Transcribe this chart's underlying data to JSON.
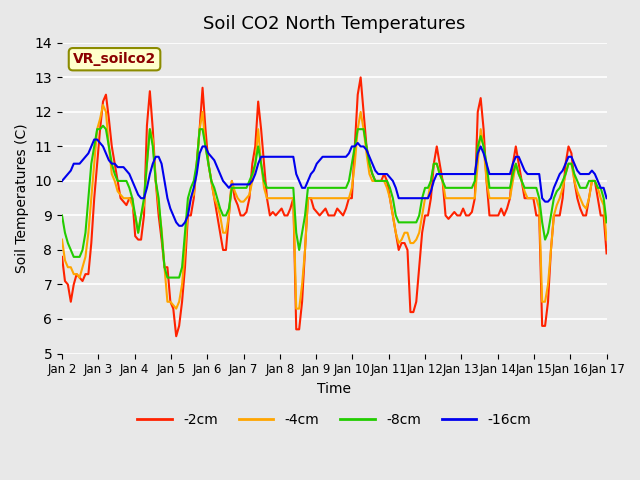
{
  "title": "Soil CO2 North Temperatures",
  "xlabel": "Time",
  "ylabel": "Soil Temperatures (C)",
  "ylim": [
    5.0,
    14.0
  ],
  "yticks": [
    5.0,
    6.0,
    7.0,
    8.0,
    9.0,
    10.0,
    11.0,
    12.0,
    13.0,
    14.0
  ],
  "xtick_labels": [
    "Jan 2",
    "Jan 3",
    "Jan 4",
    "Jan 5",
    "Jan 6",
    "Jan 7",
    "Jan 8",
    "Jan 9",
    "Jan 10",
    "Jan 11",
    "Jan 12",
    "Jan 13",
    "Jan 14",
    "Jan 15",
    "Jan 16",
    "Jan 17"
  ],
  "annotation_text": "VR_soilco2",
  "annotation_color": "#8B0000",
  "annotation_bg": "#FFFFCC",
  "annotation_border": "#8B8B00",
  "colors": {
    "-2cm": "#FF2200",
    "-4cm": "#FFA500",
    "-8cm": "#22CC00",
    "-16cm": "#0000EE"
  },
  "line_width": 1.5,
  "background_color": "#E0E0E0",
  "plot_bg": "#E8E8E8",
  "grid_color": "#FFFFFF",
  "series": {
    "-2cm": [
      7.8,
      7.1,
      7.0,
      6.5,
      7.0,
      7.3,
      7.2,
      7.1,
      7.3,
      7.3,
      8.2,
      9.5,
      10.5,
      11.5,
      12.3,
      12.5,
      11.8,
      11.0,
      10.5,
      10.0,
      9.5,
      9.4,
      9.3,
      9.5,
      9.5,
      8.4,
      8.3,
      8.3,
      9.0,
      11.6,
      12.6,
      11.5,
      10.0,
      9.0,
      8.3,
      7.5,
      7.5,
      6.5,
      6.3,
      5.5,
      5.8,
      6.5,
      7.5,
      9.0,
      9.0,
      9.5,
      10.5,
      11.5,
      12.7,
      11.5,
      10.5,
      10.0,
      9.5,
      9.0,
      8.5,
      8.0,
      8.0,
      9.0,
      10.0,
      9.5,
      9.3,
      9.0,
      9.0,
      9.1,
      9.5,
      10.5,
      11.0,
      12.3,
      11.5,
      10.5,
      9.5,
      9.0,
      9.1,
      9.0,
      9.1,
      9.2,
      9.0,
      9.0,
      9.2,
      9.5,
      5.7,
      5.7,
      6.5,
      8.0,
      9.5,
      9.5,
      9.2,
      9.1,
      9.0,
      9.1,
      9.2,
      9.0,
      9.0,
      9.0,
      9.2,
      9.1,
      9.0,
      9.2,
      9.5,
      9.5,
      11.0,
      12.5,
      13.0,
      12.0,
      11.0,
      10.5,
      10.2,
      10.0,
      10.0,
      10.0,
      10.2,
      10.0,
      9.5,
      9.0,
      8.5,
      8.0,
      8.2,
      8.2,
      8.0,
      6.2,
      6.2,
      6.5,
      7.5,
      8.5,
      9.0,
      9.0,
      9.5,
      10.5,
      11.0,
      10.5,
      10.0,
      9.0,
      8.9,
      9.0,
      9.1,
      9.0,
      9.0,
      9.2,
      9.0,
      9.0,
      9.1,
      9.5,
      12.0,
      12.4,
      11.5,
      10.0,
      9.0,
      9.0,
      9.0,
      9.0,
      9.2,
      9.0,
      9.2,
      9.5,
      10.5,
      11.0,
      10.5,
      10.0,
      9.5,
      9.5,
      9.5,
      9.5,
      9.0,
      9.0,
      5.8,
      5.8,
      6.5,
      8.0,
      9.0,
      9.0,
      9.0,
      9.5,
      10.5,
      11.0,
      10.8,
      10.0,
      9.5,
      9.2,
      9.0,
      9.0,
      9.5,
      10.0,
      10.0,
      9.5,
      9.0,
      9.0,
      7.9
    ],
    "-4cm": [
      8.3,
      7.7,
      7.5,
      7.5,
      7.3,
      7.3,
      7.2,
      7.5,
      7.8,
      8.5,
      9.5,
      10.5,
      11.5,
      11.8,
      12.2,
      12.0,
      11.0,
      10.2,
      10.0,
      9.7,
      9.6,
      9.5,
      9.5,
      9.5,
      9.3,
      9.0,
      8.5,
      9.0,
      9.3,
      10.5,
      11.5,
      11.2,
      10.0,
      9.3,
      8.6,
      7.5,
      6.5,
      6.5,
      6.4,
      6.3,
      6.5,
      7.0,
      8.0,
      9.2,
      9.5,
      9.6,
      10.5,
      11.5,
      12.0,
      11.0,
      10.5,
      10.0,
      9.5,
      9.3,
      9.0,
      8.5,
      8.5,
      9.0,
      10.0,
      9.7,
      9.5,
      9.4,
      9.4,
      9.5,
      9.6,
      10.0,
      10.5,
      11.5,
      10.5,
      9.8,
      9.5,
      9.5,
      9.5,
      9.5,
      9.5,
      9.5,
      9.5,
      9.5,
      9.5,
      9.5,
      6.3,
      6.3,
      7.0,
      8.0,
      9.5,
      9.5,
      9.5,
      9.5,
      9.5,
      9.5,
      9.5,
      9.5,
      9.5,
      9.5,
      9.5,
      9.5,
      9.5,
      9.5,
      9.5,
      9.8,
      10.5,
      11.5,
      12.0,
      11.5,
      10.8,
      10.2,
      10.0,
      10.0,
      10.0,
      10.0,
      10.0,
      9.8,
      9.5,
      9.0,
      8.5,
      8.2,
      8.3,
      8.5,
      8.5,
      8.2,
      8.2,
      8.3,
      8.5,
      9.0,
      9.5,
      9.5,
      10.0,
      10.5,
      10.5,
      10.2,
      10.0,
      9.5,
      9.5,
      9.5,
      9.5,
      9.5,
      9.5,
      9.5,
      9.5,
      9.5,
      9.5,
      9.5,
      10.5,
      11.5,
      11.0,
      10.0,
      9.5,
      9.5,
      9.5,
      9.5,
      9.5,
      9.5,
      9.5,
      9.5,
      10.0,
      10.5,
      10.2,
      10.0,
      9.7,
      9.5,
      9.5,
      9.5,
      9.5,
      9.2,
      6.5,
      6.5,
      7.0,
      8.0,
      9.0,
      9.3,
      9.5,
      9.8,
      10.2,
      10.5,
      10.5,
      10.0,
      9.7,
      9.5,
      9.3,
      9.2,
      9.5,
      10.0,
      10.0,
      9.8,
      9.5,
      9.3,
      8.3
    ],
    "-8cm": [
      9.0,
      8.5,
      8.2,
      8.0,
      7.8,
      7.8,
      7.8,
      8.0,
      8.5,
      9.5,
      10.5,
      11.0,
      11.5,
      11.5,
      11.6,
      11.5,
      11.0,
      10.5,
      10.2,
      10.0,
      10.0,
      10.0,
      10.0,
      9.8,
      9.5,
      9.0,
      8.5,
      9.0,
      9.5,
      10.5,
      11.5,
      11.0,
      10.0,
      9.5,
      8.5,
      7.5,
      7.2,
      7.2,
      7.2,
      7.2,
      7.2,
      7.5,
      8.5,
      9.5,
      9.8,
      10.0,
      10.5,
      11.5,
      11.5,
      11.0,
      10.5,
      10.0,
      9.8,
      9.5,
      9.2,
      9.0,
      9.0,
      9.2,
      9.8,
      9.8,
      9.8,
      9.8,
      9.8,
      9.8,
      10.0,
      10.2,
      10.5,
      11.0,
      10.5,
      10.0,
      9.8,
      9.8,
      9.8,
      9.8,
      9.8,
      9.8,
      9.8,
      9.8,
      9.8,
      9.8,
      8.5,
      8.0,
      8.5,
      9.0,
      9.8,
      9.8,
      9.8,
      9.8,
      9.8,
      9.8,
      9.8,
      9.8,
      9.8,
      9.8,
      9.8,
      9.8,
      9.8,
      9.8,
      10.0,
      10.5,
      11.0,
      11.5,
      11.5,
      11.5,
      11.0,
      10.5,
      10.2,
      10.0,
      10.0,
      10.0,
      10.0,
      10.0,
      9.8,
      9.5,
      9.0,
      8.8,
      8.8,
      8.8,
      8.8,
      8.8,
      8.8,
      8.8,
      9.0,
      9.5,
      9.8,
      9.8,
      10.0,
      10.5,
      10.5,
      10.2,
      10.0,
      9.8,
      9.8,
      9.8,
      9.8,
      9.8,
      9.8,
      9.8,
      9.8,
      9.8,
      9.8,
      10.0,
      11.0,
      11.3,
      11.0,
      10.5,
      9.8,
      9.8,
      9.8,
      9.8,
      9.8,
      9.8,
      9.8,
      9.8,
      10.2,
      10.5,
      10.2,
      10.0,
      9.8,
      9.8,
      9.8,
      9.8,
      9.8,
      9.5,
      8.8,
      8.3,
      8.5,
      9.0,
      9.5,
      9.7,
      9.8,
      10.0,
      10.2,
      10.5,
      10.5,
      10.2,
      10.0,
      9.8,
      9.8,
      9.8,
      10.0,
      10.0,
      10.0,
      9.8,
      9.8,
      9.5,
      8.8
    ],
    "-16cm": [
      10.0,
      10.1,
      10.2,
      10.3,
      10.5,
      10.5,
      10.5,
      10.6,
      10.7,
      10.8,
      11.0,
      11.2,
      11.2,
      11.1,
      11.0,
      10.8,
      10.6,
      10.5,
      10.5,
      10.4,
      10.4,
      10.4,
      10.3,
      10.2,
      10.0,
      9.8,
      9.6,
      9.5,
      9.5,
      9.8,
      10.2,
      10.5,
      10.7,
      10.7,
      10.5,
      10.0,
      9.5,
      9.2,
      9.0,
      8.8,
      8.7,
      8.7,
      8.8,
      9.0,
      9.5,
      9.8,
      10.2,
      10.8,
      11.0,
      11.0,
      10.8,
      10.7,
      10.6,
      10.4,
      10.2,
      10.0,
      9.9,
      9.8,
      9.9,
      9.9,
      9.9,
      9.9,
      9.9,
      9.9,
      9.9,
      10.0,
      10.2,
      10.5,
      10.7,
      10.7,
      10.7,
      10.7,
      10.7,
      10.7,
      10.7,
      10.7,
      10.7,
      10.7,
      10.7,
      10.7,
      10.2,
      10.0,
      9.8,
      9.8,
      10.0,
      10.2,
      10.3,
      10.5,
      10.6,
      10.7,
      10.7,
      10.7,
      10.7,
      10.7,
      10.7,
      10.7,
      10.7,
      10.7,
      10.8,
      11.0,
      11.0,
      11.1,
      11.0,
      11.0,
      10.9,
      10.7,
      10.5,
      10.3,
      10.2,
      10.2,
      10.2,
      10.2,
      10.1,
      10.0,
      9.8,
      9.5,
      9.5,
      9.5,
      9.5,
      9.5,
      9.5,
      9.5,
      9.5,
      9.5,
      9.5,
      9.5,
      9.7,
      10.0,
      10.2,
      10.2,
      10.2,
      10.2,
      10.2,
      10.2,
      10.2,
      10.2,
      10.2,
      10.2,
      10.2,
      10.2,
      10.2,
      10.2,
      10.8,
      11.0,
      10.8,
      10.5,
      10.2,
      10.2,
      10.2,
      10.2,
      10.2,
      10.2,
      10.2,
      10.2,
      10.5,
      10.7,
      10.7,
      10.5,
      10.3,
      10.2,
      10.2,
      10.2,
      10.2,
      10.2,
      9.5,
      9.4,
      9.4,
      9.5,
      9.8,
      10.0,
      10.2,
      10.3,
      10.5,
      10.7,
      10.7,
      10.5,
      10.3,
      10.2,
      10.2,
      10.2,
      10.2,
      10.3,
      10.2,
      10.0,
      9.8,
      9.8,
      9.5
    ]
  }
}
